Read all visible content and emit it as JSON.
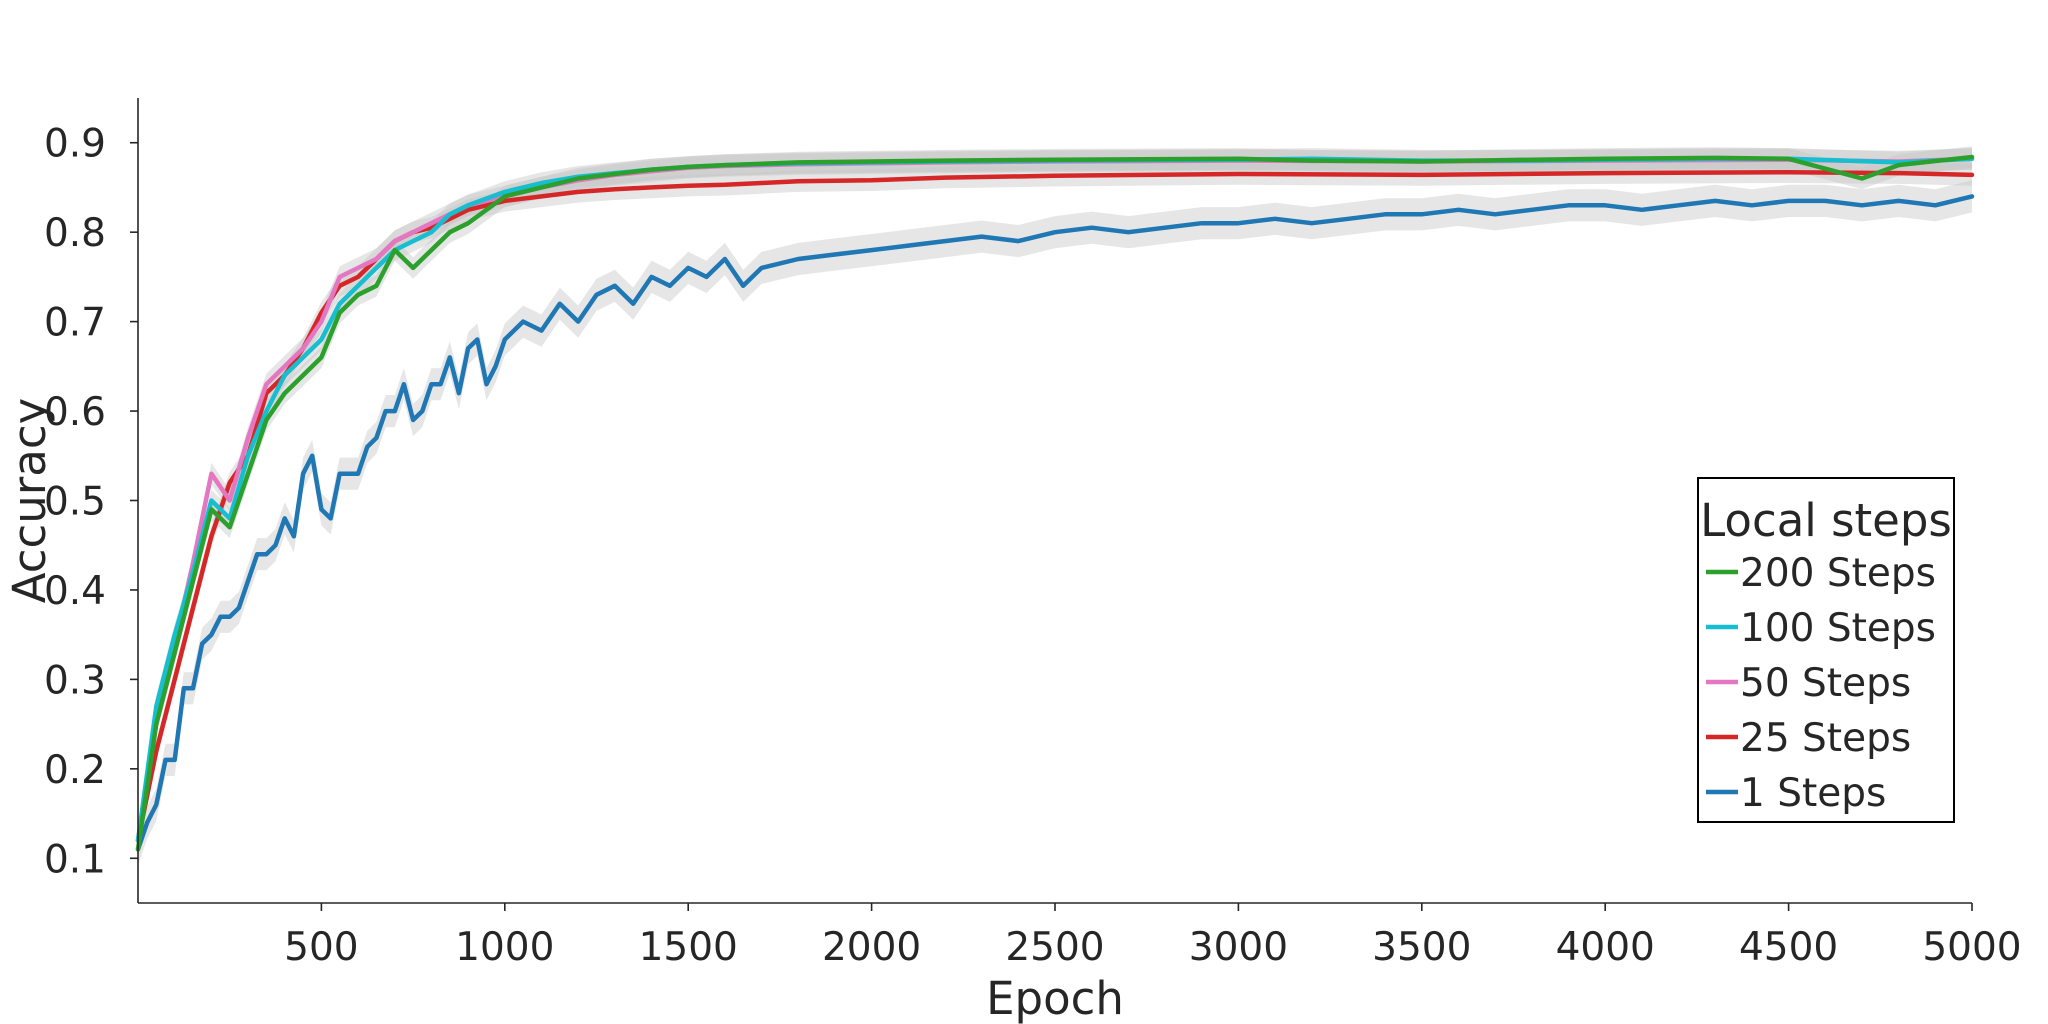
{
  "chart_data": {
    "type": "line",
    "title": "",
    "xlabel": "Epoch",
    "ylabel": "Accuracy",
    "xlim": [
      0,
      5000
    ],
    "ylim": [
      0.05,
      0.95
    ],
    "xticks": [
      500,
      1000,
      1500,
      2000,
      2500,
      3000,
      3500,
      4000,
      4500,
      5000
    ],
    "yticks": [
      0.1,
      0.2,
      0.3,
      0.4,
      0.5,
      0.6,
      0.7,
      0.8,
      0.9
    ],
    "xtick_labels": [
      "500",
      "1000",
      "1500",
      "2000",
      "2500",
      "3000",
      "3500",
      "4000",
      "4500",
      "5000"
    ],
    "ytick_labels": [
      "0.1",
      "0.2",
      "0.3",
      "0.4",
      "0.5",
      "0.6",
      "0.7",
      "0.8",
      "0.9"
    ],
    "grid": false,
    "shaded_band": "std",
    "legend": {
      "title": "Local steps",
      "placement": "lower-right"
    },
    "series": [
      {
        "name": "200 Steps",
        "color": "#2ca02c",
        "x": [
          0,
          50,
          100,
          150,
          200,
          250,
          300,
          350,
          400,
          450,
          500,
          550,
          600,
          650,
          700,
          750,
          800,
          850,
          900,
          1000,
          1100,
          1200,
          1300,
          1400,
          1500,
          1600,
          1800,
          2000,
          2200,
          2500,
          3000,
          3200,
          3500,
          3800,
          4000,
          4300,
          4500,
          4700,
          4800,
          5000
        ],
        "y": [
          0.11,
          0.25,
          0.33,
          0.41,
          0.49,
          0.47,
          0.53,
          0.59,
          0.62,
          0.64,
          0.66,
          0.71,
          0.73,
          0.74,
          0.78,
          0.76,
          0.78,
          0.8,
          0.81,
          0.84,
          0.85,
          0.86,
          0.865,
          0.87,
          0.873,
          0.875,
          0.878,
          0.879,
          0.88,
          0.881,
          0.882,
          0.88,
          0.879,
          0.881,
          0.882,
          0.883,
          0.882,
          0.86,
          0.875,
          0.884
        ]
      },
      {
        "name": "100 Steps",
        "color": "#17becf",
        "x": [
          0,
          50,
          100,
          150,
          200,
          250,
          300,
          350,
          400,
          450,
          500,
          550,
          600,
          650,
          700,
          750,
          800,
          850,
          900,
          1000,
          1100,
          1200,
          1300,
          1400,
          1500,
          1600,
          1800,
          2000,
          2200,
          2500,
          3000,
          3200,
          3500,
          3800,
          4000,
          4300,
          4500,
          4800,
          5000
        ],
        "y": [
          0.12,
          0.27,
          0.35,
          0.42,
          0.5,
          0.48,
          0.55,
          0.6,
          0.64,
          0.66,
          0.68,
          0.72,
          0.74,
          0.76,
          0.78,
          0.79,
          0.8,
          0.82,
          0.83,
          0.845,
          0.855,
          0.862,
          0.866,
          0.87,
          0.873,
          0.875,
          0.877,
          0.878,
          0.879,
          0.88,
          0.881,
          0.882,
          0.88,
          0.88,
          0.881,
          0.882,
          0.882,
          0.878,
          0.882
        ]
      },
      {
        "name": "50 Steps",
        "color": "#e377c2",
        "x": [
          0,
          50,
          100,
          150,
          200,
          250,
          300,
          350,
          400,
          450,
          500,
          550,
          600,
          650,
          700,
          750,
          800,
          850,
          900,
          1000,
          1100,
          1200,
          1300,
          1400,
          1500,
          1600,
          1800,
          2000,
          2200,
          2500,
          3000,
          3500,
          4000,
          4500,
          4800,
          5000
        ],
        "y": [
          0.12,
          0.26,
          0.34,
          0.43,
          0.53,
          0.5,
          0.57,
          0.63,
          0.65,
          0.67,
          0.7,
          0.75,
          0.76,
          0.77,
          0.79,
          0.8,
          0.81,
          0.82,
          0.83,
          0.84,
          0.85,
          0.858,
          0.864,
          0.868,
          0.872,
          0.874,
          0.876,
          0.877,
          0.878,
          0.879,
          0.88,
          0.879,
          0.88,
          0.881,
          0.879,
          0.882
        ]
      },
      {
        "name": "25 Steps",
        "color": "#d62728",
        "x": [
          0,
          50,
          100,
          150,
          200,
          250,
          300,
          350,
          400,
          450,
          500,
          550,
          600,
          650,
          700,
          750,
          800,
          850,
          900,
          1000,
          1100,
          1200,
          1300,
          1400,
          1500,
          1600,
          1700,
          1800,
          2000,
          2200,
          2500,
          3000,
          3500,
          4000,
          4500,
          4800,
          5000
        ],
        "y": [
          0.12,
          0.22,
          0.3,
          0.38,
          0.46,
          0.52,
          0.55,
          0.62,
          0.64,
          0.67,
          0.71,
          0.74,
          0.75,
          0.77,
          0.79,
          0.8,
          0.805,
          0.815,
          0.825,
          0.835,
          0.84,
          0.845,
          0.848,
          0.85,
          0.852,
          0.853,
          0.855,
          0.857,
          0.858,
          0.861,
          0.863,
          0.865,
          0.864,
          0.866,
          0.867,
          0.866,
          0.864
        ]
      },
      {
        "name": "1 Steps",
        "color": "#1f77b4",
        "x": [
          0,
          25,
          50,
          75,
          100,
          125,
          150,
          175,
          200,
          225,
          250,
          275,
          300,
          325,
          350,
          375,
          400,
          425,
          450,
          475,
          500,
          525,
          550,
          575,
          600,
          625,
          650,
          675,
          700,
          725,
          750,
          775,
          800,
          825,
          850,
          875,
          900,
          925,
          950,
          975,
          1000,
          1050,
          1100,
          1150,
          1200,
          1250,
          1300,
          1350,
          1400,
          1450,
          1500,
          1550,
          1600,
          1650,
          1700,
          1800,
          1900,
          2000,
          2100,
          2200,
          2300,
          2400,
          2500,
          2600,
          2700,
          2800,
          2900,
          3000,
          3100,
          3200,
          3300,
          3400,
          3500,
          3600,
          3700,
          3800,
          3900,
          4000,
          4100,
          4200,
          4300,
          4400,
          4500,
          4600,
          4700,
          4800,
          4900,
          5000
        ],
        "y": [
          0.11,
          0.14,
          0.16,
          0.21,
          0.21,
          0.29,
          0.29,
          0.34,
          0.35,
          0.37,
          0.37,
          0.38,
          0.41,
          0.44,
          0.44,
          0.45,
          0.48,
          0.46,
          0.53,
          0.55,
          0.49,
          0.48,
          0.53,
          0.53,
          0.53,
          0.56,
          0.57,
          0.6,
          0.6,
          0.63,
          0.59,
          0.6,
          0.63,
          0.63,
          0.66,
          0.62,
          0.67,
          0.68,
          0.63,
          0.65,
          0.68,
          0.7,
          0.69,
          0.72,
          0.7,
          0.73,
          0.74,
          0.72,
          0.75,
          0.74,
          0.76,
          0.75,
          0.77,
          0.74,
          0.76,
          0.77,
          0.775,
          0.78,
          0.785,
          0.79,
          0.795,
          0.79,
          0.8,
          0.805,
          0.8,
          0.805,
          0.81,
          0.81,
          0.815,
          0.81,
          0.815,
          0.82,
          0.82,
          0.825,
          0.82,
          0.825,
          0.83,
          0.83,
          0.825,
          0.83,
          0.835,
          0.83,
          0.835,
          0.835,
          0.83,
          0.835,
          0.83,
          0.84
        ]
      }
    ]
  }
}
